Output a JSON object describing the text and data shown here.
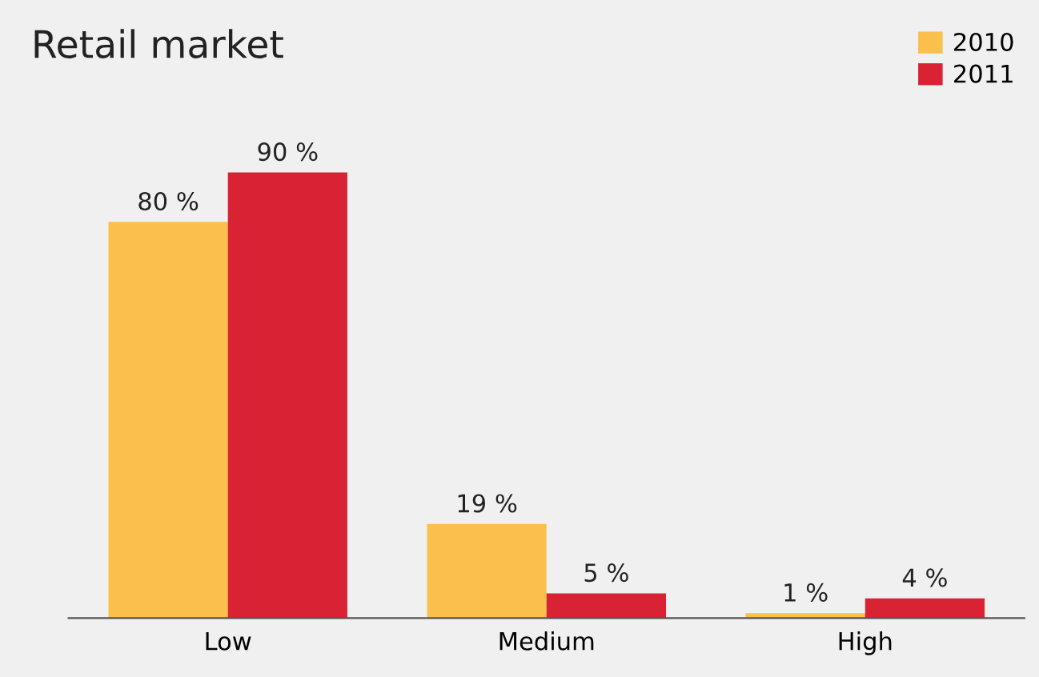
{
  "chart_data": {
    "type": "bar",
    "title": "Retail market",
    "categories": [
      "Low",
      "Medium",
      "High"
    ],
    "series": [
      {
        "name": "2010",
        "color": "#fbbf4b",
        "values": [
          80,
          19,
          1
        ],
        "value_labels": [
          "80 %",
          "19 %",
          "1 %"
        ]
      },
      {
        "name": "2011",
        "color": "#d92335",
        "values": [
          90,
          5,
          4
        ],
        "value_labels": [
          "90 %",
          "5 %",
          "4 %"
        ]
      }
    ],
    "legend": "top right",
    "grid": false
  }
}
